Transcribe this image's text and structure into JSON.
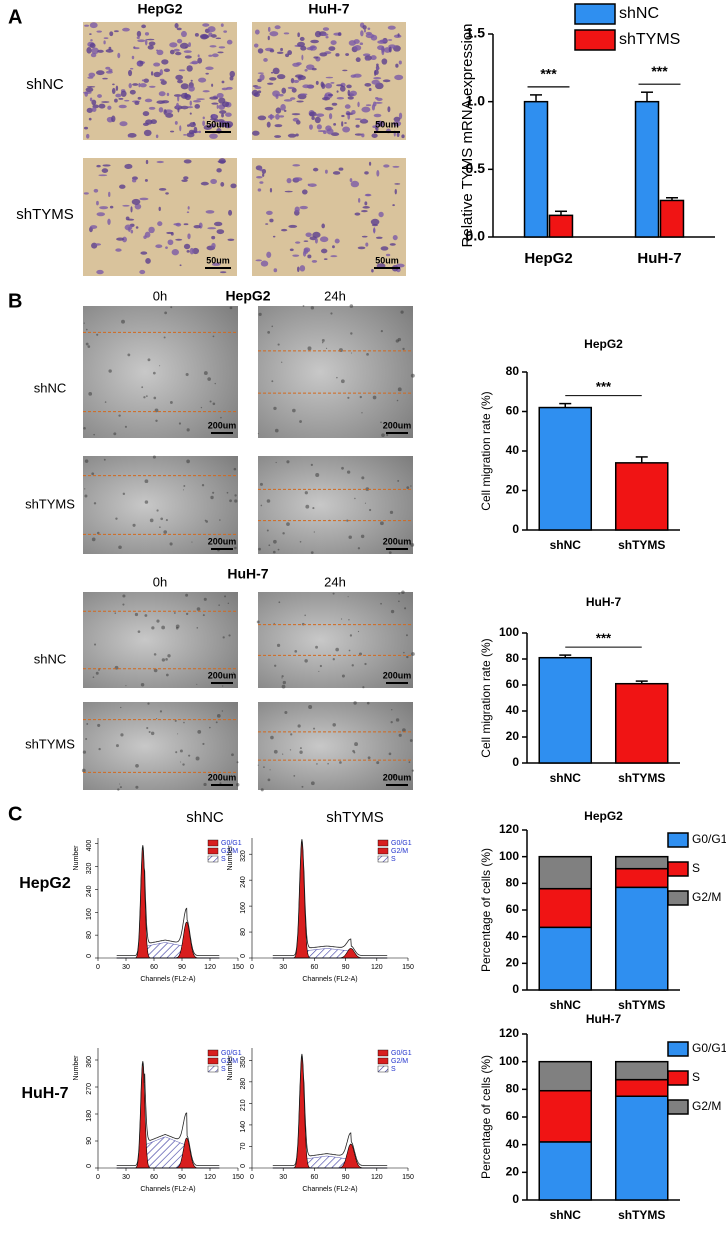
{
  "panel_labels": [
    "A",
    "B",
    "C"
  ],
  "invasion": {
    "columns": [
      "HepG2",
      "HuH-7"
    ],
    "rows": [
      "shNC",
      "shTYMS"
    ],
    "scale_bar": "50um"
  },
  "wound": {
    "lines": [
      "HepG2",
      "HuH-7"
    ],
    "columns": [
      "0h",
      "24h"
    ],
    "rows": [
      "shNC",
      "shTYMS"
    ],
    "scale_bar": "200um"
  },
  "flow": {
    "columns": [
      "shNC",
      "shTYMS"
    ],
    "rows": [
      "HepG2",
      "HuH-7"
    ],
    "xlabel": "Channels (FL2-A)",
    "ylabel": "Number",
    "legend": [
      "G0/G1",
      "G2/M",
      "S"
    ],
    "xlim": [
      0,
      150
    ],
    "xticks": [
      0,
      30,
      60,
      90,
      120,
      150
    ],
    "plots": [
      {
        "ylim": [
          0,
          420
        ],
        "yticks": [
          0,
          80,
          160,
          240,
          320,
          400
        ]
      },
      {
        "ylim": [
          0,
          370
        ],
        "yticks": [
          0,
          80,
          160,
          240,
          320
        ]
      },
      {
        "ylim": [
          0,
          400
        ],
        "yticks": [
          0,
          90,
          180,
          270,
          360
        ]
      },
      {
        "ylim": [
          0,
          390
        ],
        "yticks": [
          0,
          70,
          140,
          210,
          280,
          350
        ]
      }
    ]
  },
  "chart_data": [
    {
      "type": "bar",
      "ylabel": "Relative TYMS mRNA expression",
      "categories": [
        "HepG2",
        "HuH-7"
      ],
      "series": [
        {
          "name": "shNC",
          "color": "#2f8ff0",
          "values": [
            1.0,
            1.0
          ],
          "errors": [
            0.05,
            0.07
          ]
        },
        {
          "name": "shTYMS",
          "color": "#f01414",
          "values": [
            0.16,
            0.27
          ],
          "errors": [
            0.03,
            0.02
          ]
        }
      ],
      "ylim": [
        0,
        1.5
      ],
      "yticks": [
        {
          "value": 0,
          "label": "0.0"
        },
        0.5,
        {
          "value": 1,
          "label": "1.0"
        },
        1.5
      ],
      "legend": "top-right",
      "annotations": [
        "***",
        "***"
      ]
    },
    {
      "type": "bar",
      "title": "HepG2",
      "ylabel": "Cell migration rate (%)",
      "categories": [
        "shNC",
        "shTYMS"
      ],
      "values": [
        62,
        34
      ],
      "errors": [
        2,
        3
      ],
      "colors": [
        "#2f8ff0",
        "#f01414"
      ],
      "ylim": [
        0,
        80
      ],
      "yticks": [
        0,
        20,
        40,
        60,
        80
      ],
      "annotations": [
        "***"
      ]
    },
    {
      "type": "bar",
      "title": "HuH-7",
      "ylabel": "Cell migration rate (%)",
      "categories": [
        "shNC",
        "shTYMS"
      ],
      "values": [
        81,
        61
      ],
      "errors": [
        2,
        2
      ],
      "colors": [
        "#2f8ff0",
        "#f01414"
      ],
      "ylim": [
        0,
        100
      ],
      "yticks": [
        0,
        20,
        40,
        60,
        80,
        100
      ],
      "annotations": [
        "***"
      ]
    },
    {
      "type": "stacked_bar",
      "title": "HepG2",
      "ylabel": "Percentage of cells (%)",
      "categories": [
        "shNC",
        "shTYMS"
      ],
      "series": [
        {
          "name": "G0/G1",
          "color": "#2f8ff0",
          "values": [
            47,
            77
          ]
        },
        {
          "name": "S",
          "color": "#f01414",
          "values": [
            29,
            14
          ]
        },
        {
          "name": "G2/M",
          "color": "#808080",
          "values": [
            24,
            9
          ]
        }
      ],
      "ylim": [
        0,
        120
      ],
      "yticks": [
        0,
        20,
        40,
        60,
        80,
        100,
        120
      ],
      "legend": "right"
    },
    {
      "type": "stacked_bar",
      "title": "HuH-7",
      "ylabel": "Percentage of cells (%)",
      "categories": [
        "shNC",
        "shTYMS"
      ],
      "series": [
        {
          "name": "G0/G1",
          "color": "#2f8ff0",
          "values": [
            42,
            75
          ]
        },
        {
          "name": "S",
          "color": "#f01414",
          "values": [
            37,
            12
          ]
        },
        {
          "name": "G2/M",
          "color": "#808080",
          "values": [
            21,
            13
          ]
        }
      ],
      "ylim": [
        0,
        120
      ],
      "yticks": [
        0,
        20,
        40,
        60,
        80,
        100,
        120
      ],
      "legend": "right"
    }
  ]
}
